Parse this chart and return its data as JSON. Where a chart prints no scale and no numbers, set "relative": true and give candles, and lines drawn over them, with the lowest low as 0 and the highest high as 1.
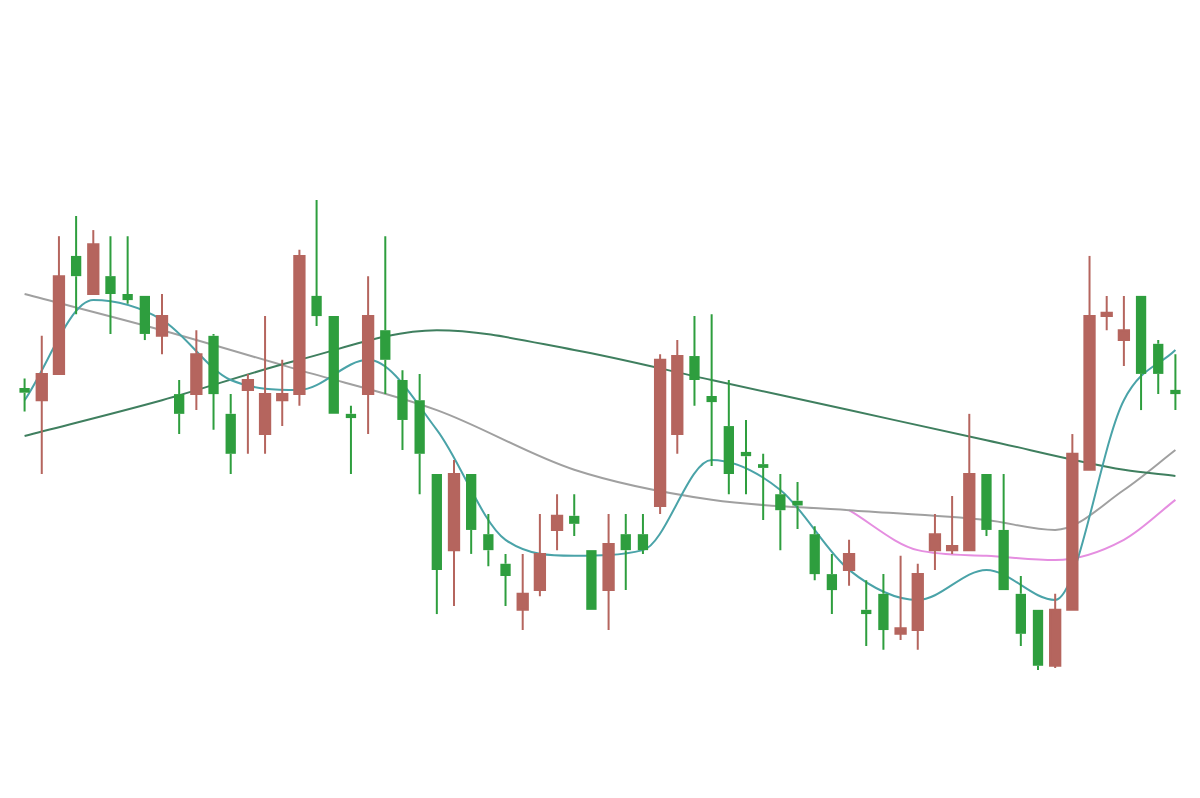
{
  "chart_data": {
    "type": "candlestick",
    "relative": true,
    "categories": [
      null,
      null,
      null,
      null,
      null,
      null,
      null,
      null,
      null,
      null,
      null,
      null,
      null,
      null,
      null,
      null,
      null,
      null,
      null,
      null,
      null,
      null,
      null,
      null,
      null,
      null,
      null,
      null,
      null,
      null,
      null,
      null,
      null,
      null,
      null,
      null,
      null,
      null,
      null,
      null,
      null,
      null,
      null,
      null,
      null,
      null,
      null,
      null,
      null,
      null,
      null,
      null,
      null,
      null,
      null,
      null,
      null,
      null,
      null,
      null,
      null,
      null,
      null,
      null,
      null,
      null,
      null,
      null
    ],
    "ohlc": [
      [
        0.6,
        0.62,
        0.55,
        0.59
      ],
      [
        0.574,
        0.711,
        0.417,
        0.63
      ],
      [
        0.63,
        0.923,
        0.63,
        0.838
      ],
      [
        0.881,
        0.966,
        0.757,
        0.838
      ],
      [
        0.8,
        0.936,
        0.8,
        0.906
      ],
      [
        0.838,
        0.923,
        0.715,
        0.8
      ],
      [
        0.8,
        0.923,
        0.779,
        0.787
      ],
      [
        0.796,
        0.796,
        0.702,
        0.715
      ],
      [
        0.711,
        0.8,
        0.672,
        0.753
      ],
      [
        0.587,
        0.617,
        0.502,
        0.545
      ],
      [
        0.587,
        0.723,
        0.553,
        0.672
      ],
      [
        0.711,
        0.715,
        0.511,
        0.587
      ],
      [
        0.545,
        0.587,
        0.417,
        0.46
      ],
      [
        0.596,
        0.63,
        0.46,
        0.617
      ],
      [
        0.502,
        0.753,
        0.46,
        0.587
      ],
      [
        0.574,
        0.66,
        0.519,
        0.587
      ],
      [
        0.587,
        0.894,
        0.562,
        0.881
      ],
      [
        0.796,
        1.0,
        0.732,
        0.753
      ],
      [
        0.753,
        0.753,
        0.545,
        0.545
      ],
      [
        0.545,
        0.562,
        0.417,
        0.536
      ],
      [
        0.587,
        0.838,
        0.502,
        0.753
      ],
      [
        0.723,
        0.923,
        0.587,
        0.66
      ],
      [
        0.617,
        0.638,
        0.468,
        0.532
      ],
      [
        0.574,
        0.63,
        0.374,
        0.46
      ],
      [
        0.417,
        0.417,
        0.119,
        0.213
      ],
      [
        0.255,
        0.447,
        0.136,
        0.417
      ],
      [
        0.417,
        0.417,
        0.247,
        0.298
      ],
      [
        0.289,
        0.332,
        0.221,
        0.255
      ],
      [
        0.226,
        0.247,
        0.136,
        0.2
      ],
      [
        0.128,
        0.247,
        0.085,
        0.162
      ],
      [
        0.17,
        0.332,
        0.157,
        0.247
      ],
      [
        0.298,
        0.374,
        0.255,
        0.328
      ],
      [
        0.328,
        0.374,
        0.285,
        0.311
      ],
      [
        0.255,
        0.255,
        0.128,
        0.128
      ],
      [
        0.17,
        0.332,
        0.085,
        0.268
      ],
      [
        0.289,
        0.332,
        0.17,
        0.255
      ],
      [
        0.289,
        0.332,
        0.247,
        0.255
      ],
      [
        0.349,
        0.672,
        0.332,
        0.66
      ],
      [
        0.502,
        0.702,
        0.46,
        0.668
      ],
      [
        0.668,
        0.753,
        0.562,
        0.617
      ],
      [
        0.583,
        0.757,
        0.434,
        0.57
      ],
      [
        0.519,
        0.617,
        0.374,
        0.417
      ],
      [
        0.464,
        0.532,
        0.374,
        0.455
      ],
      [
        0.438,
        0.46,
        0.319,
        0.43
      ],
      [
        0.374,
        0.417,
        0.255,
        0.34
      ],
      [
        0.36,
        0.4,
        0.3,
        0.35
      ],
      [
        0.289,
        0.306,
        0.191,
        0.204
      ],
      [
        0.204,
        0.247,
        0.119,
        0.17
      ],
      [
        0.213,
        0.277,
        0.179,
        0.247
      ],
      [
        0.128,
        0.191,
        0.051,
        0.119
      ],
      [
        0.162,
        0.204,
        0.043,
        0.085
      ],
      [
        0.077,
        0.243,
        0.064,
        0.089
      ],
      [
        0.085,
        0.226,
        0.043,
        0.204
      ],
      [
        0.255,
        0.332,
        0.213,
        0.289
      ],
      [
        0.255,
        0.37,
        0.247,
        0.264
      ],
      [
        0.255,
        0.545,
        0.255,
        0.417
      ],
      [
        0.417,
        0.417,
        0.285,
        0.298
      ],
      [
        0.298,
        0.417,
        0.17,
        0.17
      ],
      [
        0.162,
        0.2,
        0.051,
        0.077
      ],
      [
        0.128,
        0.128,
        0,
        0.009
      ],
      [
        0.009,
        0.162,
        0.004,
        0.128
      ],
      [
        0.128,
        0.502,
        0.128,
        0.46
      ],
      [
        0.426,
        0.881,
        0.426,
        0.753
      ],
      [
        0.753,
        0.796,
        0.723,
        0.76
      ],
      [
        0.702,
        0.796,
        0.647,
        0.723
      ],
      [
        0.796,
        0.796,
        0.553,
        0.63
      ],
      [
        0.694,
        0.702,
        0.587,
        0.63
      ],
      [
        0.596,
        0.672,
        0.553,
        0.587
      ]
    ],
    "series": [
      {
        "type": "line",
        "color": "#4aa3a8",
        "values": [
          0.574,
          null,
          null,
          null,
          0.787,
          null,
          null,
          null,
          0.745,
          null,
          null,
          null,
          0.617,
          null,
          null,
          null,
          0.596,
          null,
          null,
          null,
          0.66,
          null,
          null,
          null,
          0.511,
          null,
          null,
          null,
          0.277,
          null,
          null,
          null,
          0.243,
          null,
          null,
          null,
          0.255,
          null,
          null,
          null,
          0.447,
          null,
          null,
          null,
          0.383,
          null,
          null,
          null,
          0.213,
          null,
          null,
          null,
          0.149,
          null,
          null,
          null,
          0.213,
          null,
          null,
          null,
          0.149,
          null,
          null,
          null,
          0.574,
          null,
          null,
          0.681
        ]
      },
      {
        "type": "line",
        "color": "#3f7f5f",
        "values": [
          0.498,
          null,
          null,
          null,
          null,
          null,
          null,
          null,
          0.574,
          null,
          null,
          null,
          null,
          null,
          null,
          null,
          0.66,
          null,
          null,
          null,
          null,
          null,
          null,
          null,
          0.723,
          null,
          null,
          null,
          null,
          null,
          null,
          null,
          0.681,
          null,
          null,
          null,
          null,
          null,
          null,
          null,
          0.617,
          null,
          null,
          null,
          null,
          null,
          null,
          null,
          0.553,
          null,
          null,
          null,
          null,
          null,
          null,
          null,
          0.489,
          null,
          null,
          null,
          null,
          null,
          null,
          null,
          0.426,
          null,
          null,
          0.413
        ]
      },
      {
        "type": "line",
        "color": "#a0a0a0",
        "values": [
          0.8,
          null,
          null,
          null,
          null,
          null,
          null,
          null,
          0.723,
          null,
          null,
          null,
          null,
          null,
          null,
          null,
          0.638,
          null,
          null,
          null,
          null,
          null,
          null,
          null,
          0.553,
          null,
          null,
          null,
          null,
          null,
          null,
          null,
          0.426,
          null,
          null,
          null,
          null,
          null,
          null,
          null,
          0.362,
          null,
          null,
          null,
          null,
          null,
          null,
          null,
          0.34,
          null,
          null,
          null,
          null,
          null,
          null,
          null,
          0.319,
          null,
          null,
          null,
          0.298,
          null,
          null,
          null,
          0.383,
          null,
          null,
          0.468
        ]
      },
      {
        "type": "line",
        "color": "#e58ee0",
        "values": [
          null,
          null,
          null,
          null,
          null,
          null,
          null,
          null,
          null,
          null,
          null,
          null,
          null,
          null,
          null,
          null,
          null,
          null,
          null,
          null,
          null,
          null,
          null,
          null,
          null,
          null,
          null,
          null,
          null,
          null,
          null,
          null,
          null,
          null,
          null,
          null,
          null,
          null,
          null,
          null,
          null,
          null,
          null,
          null,
          null,
          null,
          null,
          null,
          0.34,
          null,
          null,
          null,
          0.255,
          null,
          null,
          null,
          0.243,
          null,
          null,
          null,
          0.234,
          null,
          null,
          null,
          0.277,
          null,
          null,
          0.362
        ]
      }
    ],
    "colors": [
      "#2e9e3e",
      "#b5655e",
      "#b5655e",
      "#2e9e3e",
      "#b5655e",
      "#2e9e3e",
      "#2e9e3e",
      "#2e9e3e",
      "#b5655e",
      "#2e9e3e",
      "#b5655e",
      "#2e9e3e",
      "#2e9e3e",
      "#b5655e",
      "#b5655e",
      "#b5655e",
      "#b5655e",
      "#2e9e3e",
      "#2e9e3e",
      "#2e9e3e",
      "#b5655e",
      "#2e9e3e",
      "#2e9e3e",
      "#2e9e3e",
      "#2e9e3e",
      "#b5655e",
      "#2e9e3e",
      "#2e9e3e",
      "#2e9e3e",
      "#b5655e",
      "#b5655e",
      "#b5655e",
      "#2e9e3e",
      "#2e9e3e",
      "#b5655e",
      "#2e9e3e",
      "#2e9e3e",
      "#b5655e",
      "#b5655e",
      "#2e9e3e",
      "#2e9e3e",
      "#2e9e3e",
      "#2e9e3e",
      "#2e9e3e",
      "#2e9e3e",
      "#2e9e3e",
      "#2e9e3e",
      "#2e9e3e",
      "#b5655e",
      "#2e9e3e",
      "#2e9e3e",
      "#b5655e",
      "#b5655e",
      "#b5655e",
      "#b5655e",
      "#b5655e",
      "#2e9e3e",
      "#2e9e3e",
      "#2e9e3e",
      "#2e9e3e",
      "#b5655e",
      "#b5655e",
      "#b5655e",
      "#b5655e",
      "#b5655e",
      "#2e9e3e",
      "#2e9e3e",
      "#2e9e3e"
    ]
  }
}
